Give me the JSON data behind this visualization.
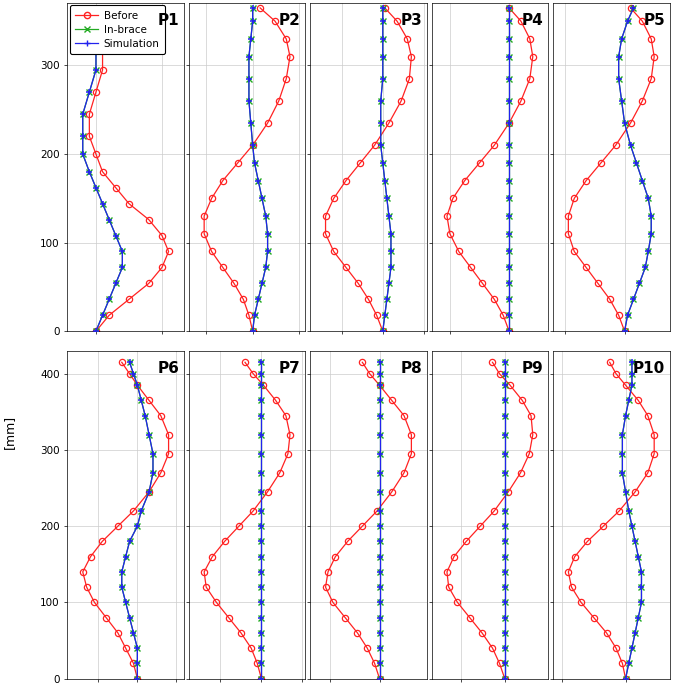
{
  "patients_row1": [
    "P1",
    "P2",
    "P3",
    "P4",
    "P5"
  ],
  "patients_row2": [
    "P6",
    "P7",
    "P8",
    "P9",
    "P10"
  ],
  "legend_labels": [
    "Before",
    "In-brace",
    "Simulation"
  ],
  "before_color": "#FF2222",
  "inbrace_color": "#22AA22",
  "sim_color": "#2222EE",
  "row1_ylim": [
    0,
    370
  ],
  "row2_ylim": [
    0,
    430
  ],
  "row1_yticks": [
    0,
    100,
    200,
    300
  ],
  "row2_yticks": [
    0,
    100,
    200,
    300,
    400
  ],
  "P1": {
    "by": [
      0,
      18,
      36,
      54,
      72,
      90,
      108,
      126,
      144,
      162,
      180,
      200,
      220,
      245,
      270,
      295,
      320,
      345
    ],
    "bx": [
      0,
      2,
      5,
      8,
      10,
      11,
      10,
      8,
      5,
      3,
      1,
      0,
      -1,
      -1,
      0,
      1,
      1,
      0
    ],
    "iy": [
      0,
      18,
      36,
      54,
      72,
      90,
      108,
      126,
      144,
      162,
      180,
      200,
      220,
      245,
      270,
      295,
      320,
      345
    ],
    "ix": [
      0,
      1,
      2,
      3,
      4,
      4,
      3,
      2,
      1,
      0,
      -1,
      -2,
      -2,
      -2,
      -1,
      0,
      0,
      0
    ],
    "sy": [
      0,
      18,
      36,
      54,
      72,
      90,
      108,
      126,
      144,
      162,
      180,
      200,
      220,
      245,
      270,
      295,
      320,
      345
    ],
    "sx": [
      0,
      1,
      2,
      3,
      4,
      4,
      3,
      2,
      1,
      0,
      -1,
      -2,
      -2,
      -2,
      -1,
      0,
      0,
      0
    ]
  },
  "P2": {
    "by": [
      0,
      18,
      36,
      54,
      72,
      90,
      110,
      130,
      150,
      170,
      190,
      210,
      235,
      260,
      285,
      310,
      330,
      350,
      365
    ],
    "bx": [
      0,
      -2,
      -5,
      -10,
      -16,
      -22,
      -26,
      -26,
      -22,
      -16,
      -8,
      0,
      8,
      14,
      18,
      20,
      18,
      12,
      4
    ],
    "iy": [
      0,
      18,
      36,
      54,
      72,
      90,
      110,
      130,
      150,
      170,
      190,
      210,
      235,
      260,
      285,
      310,
      330,
      350,
      365
    ],
    "ix": [
      0,
      1,
      3,
      5,
      7,
      8,
      8,
      7,
      5,
      3,
      1,
      0,
      -1,
      -2,
      -2,
      -2,
      -1,
      0,
      0
    ],
    "sy": [
      0,
      18,
      36,
      54,
      72,
      90,
      110,
      130,
      150,
      170,
      190,
      210,
      235,
      260,
      285,
      310,
      330,
      350,
      365
    ],
    "sx": [
      0,
      1,
      3,
      5,
      7,
      8,
      8,
      7,
      5,
      3,
      1,
      0,
      -1,
      -2,
      -2,
      -2,
      -1,
      0,
      0
    ]
  },
  "P3": {
    "by": [
      0,
      18,
      36,
      54,
      72,
      90,
      110,
      130,
      150,
      170,
      190,
      210,
      235,
      260,
      285,
      310,
      330,
      350,
      365
    ],
    "bx": [
      0,
      -3,
      -7,
      -12,
      -18,
      -24,
      -28,
      -28,
      -24,
      -18,
      -11,
      -4,
      3,
      9,
      13,
      14,
      12,
      7,
      1
    ],
    "iy": [
      0,
      18,
      36,
      54,
      72,
      90,
      110,
      130,
      150,
      170,
      190,
      210,
      235,
      260,
      285,
      310,
      330,
      350,
      365
    ],
    "ix": [
      0,
      1,
      2,
      3,
      4,
      4,
      4,
      3,
      2,
      1,
      0,
      -1,
      -1,
      -1,
      0,
      0,
      0,
      0,
      0
    ],
    "sy": [
      0,
      18,
      36,
      54,
      72,
      90,
      110,
      130,
      150,
      170,
      190,
      210,
      235,
      260,
      285,
      310,
      330,
      350,
      365
    ],
    "sx": [
      0,
      1,
      2,
      3,
      4,
      4,
      4,
      3,
      2,
      1,
      0,
      -1,
      -1,
      -1,
      0,
      0,
      0,
      0,
      0
    ]
  },
  "P4": {
    "by": [
      0,
      18,
      36,
      54,
      72,
      90,
      110,
      130,
      150,
      170,
      190,
      210,
      235,
      260,
      285,
      310,
      330,
      350,
      365
    ],
    "bx": [
      0,
      -2,
      -5,
      -9,
      -13,
      -17,
      -20,
      -21,
      -19,
      -15,
      -10,
      -5,
      0,
      4,
      7,
      8,
      7,
      4,
      0
    ],
    "iy": [
      0,
      18,
      36,
      54,
      72,
      90,
      110,
      130,
      150,
      170,
      190,
      210,
      235,
      260,
      285,
      310,
      330,
      350,
      365
    ],
    "ix": [
      0,
      0,
      0,
      0,
      0,
      0,
      0,
      0,
      0,
      0,
      0,
      0,
      0,
      0,
      0,
      0,
      0,
      0,
      0
    ],
    "sy": [
      0,
      18,
      36,
      54,
      72,
      90,
      110,
      130,
      150,
      170,
      190,
      210,
      235,
      260,
      285,
      310,
      330,
      350,
      365
    ],
    "sx": [
      0,
      0,
      0,
      0,
      0,
      0,
      0,
      0,
      0,
      0,
      0,
      0,
      0,
      0,
      0,
      0,
      0,
      0,
      0
    ]
  },
  "P5": {
    "by": [
      0,
      18,
      36,
      54,
      72,
      90,
      110,
      130,
      150,
      170,
      190,
      210,
      235,
      260,
      285,
      310,
      330,
      350,
      365
    ],
    "bx": [
      0,
      -2,
      -5,
      -9,
      -13,
      -17,
      -19,
      -19,
      -17,
      -13,
      -8,
      -3,
      2,
      6,
      9,
      10,
      9,
      6,
      2
    ],
    "iy": [
      0,
      18,
      36,
      54,
      72,
      90,
      110,
      130,
      150,
      170,
      190,
      210,
      235,
      260,
      285,
      310,
      330,
      350,
      365
    ],
    "ix": [
      0,
      1,
      3,
      5,
      7,
      8,
      9,
      9,
      8,
      6,
      4,
      2,
      0,
      -1,
      -2,
      -2,
      -1,
      1,
      3
    ],
    "sy": [
      0,
      18,
      36,
      54,
      72,
      90,
      110,
      130,
      150,
      170,
      190,
      210,
      235,
      260,
      285,
      310,
      330,
      350,
      365
    ],
    "sx": [
      0,
      1,
      3,
      5,
      7,
      8,
      9,
      9,
      8,
      6,
      4,
      2,
      0,
      -1,
      -2,
      -2,
      -1,
      1,
      3
    ]
  },
  "P6": {
    "by": [
      0,
      20,
      40,
      60,
      80,
      100,
      120,
      140,
      160,
      180,
      200,
      220,
      245,
      270,
      295,
      320,
      345,
      365,
      385,
      400,
      415
    ],
    "bx": [
      0,
      -1,
      -3,
      -5,
      -8,
      -11,
      -13,
      -14,
      -12,
      -9,
      -5,
      -1,
      3,
      6,
      8,
      8,
      6,
      3,
      0,
      -2,
      -4
    ],
    "iy": [
      0,
      20,
      40,
      60,
      80,
      100,
      120,
      140,
      160,
      180,
      200,
      220,
      245,
      270,
      295,
      320,
      345,
      365,
      385,
      400,
      415
    ],
    "ix": [
      0,
      0,
      0,
      -1,
      -2,
      -3,
      -4,
      -4,
      -3,
      -2,
      0,
      1,
      3,
      4,
      4,
      3,
      2,
      1,
      0,
      -1,
      -2
    ],
    "sy": [
      0,
      20,
      40,
      60,
      80,
      100,
      120,
      140,
      160,
      180,
      200,
      220,
      245,
      270,
      295,
      320,
      345,
      365,
      385,
      400,
      415
    ],
    "sx": [
      0,
      0,
      0,
      -1,
      -2,
      -3,
      -4,
      -4,
      -3,
      -2,
      0,
      1,
      3,
      4,
      4,
      3,
      2,
      1,
      0,
      -1,
      -2
    ]
  },
  "P7": {
    "by": [
      0,
      20,
      40,
      60,
      80,
      100,
      120,
      140,
      160,
      180,
      200,
      220,
      245,
      270,
      295,
      320,
      345,
      365,
      385,
      400,
      415
    ],
    "bx": [
      0,
      -2,
      -5,
      -10,
      -16,
      -22,
      -27,
      -28,
      -24,
      -18,
      -11,
      -4,
      3,
      9,
      13,
      14,
      12,
      7,
      1,
      -4,
      -8
    ],
    "iy": [
      0,
      20,
      40,
      60,
      80,
      100,
      120,
      140,
      160,
      180,
      200,
      220,
      245,
      270,
      295,
      320,
      345,
      365,
      385,
      400,
      415
    ],
    "ix": [
      0,
      0,
      0,
      0,
      0,
      0,
      0,
      0,
      0,
      0,
      0,
      0,
      0,
      0,
      0,
      0,
      0,
      0,
      0,
      0,
      0
    ],
    "sy": [
      0,
      20,
      40,
      60,
      80,
      100,
      120,
      140,
      160,
      180,
      200,
      220,
      245,
      270,
      295,
      320,
      345,
      365,
      385,
      400,
      415
    ],
    "sx": [
      0,
      0,
      0,
      0,
      0,
      0,
      0,
      0,
      0,
      0,
      0,
      0,
      0,
      0,
      0,
      0,
      0,
      0,
      0,
      0,
      0
    ]
  },
  "P8": {
    "by": [
      0,
      20,
      40,
      60,
      80,
      100,
      120,
      140,
      160,
      180,
      200,
      220,
      245,
      270,
      295,
      320,
      345,
      365,
      385,
      400,
      415
    ],
    "bx": [
      0,
      -2,
      -5,
      -9,
      -14,
      -19,
      -22,
      -21,
      -18,
      -13,
      -7,
      -1,
      5,
      10,
      13,
      13,
      10,
      5,
      0,
      -4,
      -7
    ],
    "iy": [
      0,
      20,
      40,
      60,
      80,
      100,
      120,
      140,
      160,
      180,
      200,
      220,
      245,
      270,
      295,
      320,
      345,
      365,
      385,
      400,
      415
    ],
    "ix": [
      0,
      0,
      0,
      0,
      0,
      0,
      0,
      0,
      0,
      0,
      0,
      0,
      0,
      0,
      0,
      0,
      0,
      0,
      0,
      0,
      0
    ],
    "sy": [
      0,
      20,
      40,
      60,
      80,
      100,
      120,
      140,
      160,
      180,
      200,
      220,
      245,
      270,
      295,
      320,
      345,
      365,
      385,
      400,
      415
    ],
    "sx": [
      0,
      0,
      0,
      0,
      0,
      0,
      0,
      0,
      0,
      0,
      0,
      0,
      0,
      0,
      0,
      0,
      0,
      0,
      0,
      0,
      0
    ]
  },
  "P9": {
    "by": [
      0,
      20,
      40,
      60,
      80,
      100,
      120,
      140,
      160,
      180,
      200,
      220,
      245,
      270,
      295,
      320,
      345,
      365,
      385,
      400,
      415
    ],
    "bx": [
      0,
      -3,
      -7,
      -13,
      -20,
      -27,
      -32,
      -33,
      -29,
      -22,
      -14,
      -6,
      2,
      9,
      14,
      16,
      15,
      10,
      3,
      -3,
      -7
    ],
    "iy": [
      0,
      20,
      40,
      60,
      80,
      100,
      120,
      140,
      160,
      180,
      200,
      220,
      245,
      270,
      295,
      320,
      345,
      365,
      385,
      400,
      415
    ],
    "ix": [
      0,
      0,
      0,
      0,
      0,
      0,
      0,
      0,
      0,
      0,
      0,
      0,
      0,
      0,
      0,
      0,
      0,
      0,
      0,
      0,
      0
    ],
    "sy": [
      0,
      20,
      40,
      60,
      80,
      100,
      120,
      140,
      160,
      180,
      200,
      220,
      245,
      270,
      295,
      320,
      345,
      365,
      385,
      400,
      415
    ],
    "sx": [
      0,
      0,
      0,
      0,
      0,
      0,
      0,
      0,
      0,
      0,
      0,
      0,
      0,
      0,
      0,
      0,
      0,
      0,
      0,
      0,
      0
    ]
  },
  "P10": {
    "by": [
      0,
      20,
      40,
      60,
      80,
      100,
      120,
      140,
      160,
      180,
      200,
      220,
      245,
      270,
      295,
      320,
      345,
      365,
      385,
      400,
      415
    ],
    "bx": [
      0,
      -1,
      -3,
      -6,
      -10,
      -14,
      -17,
      -18,
      -16,
      -12,
      -7,
      -2,
      3,
      7,
      9,
      9,
      7,
      4,
      0,
      -3,
      -5
    ],
    "iy": [
      0,
      20,
      40,
      60,
      80,
      100,
      120,
      140,
      160,
      180,
      200,
      220,
      245,
      270,
      295,
      320,
      345,
      365,
      385,
      400,
      415
    ],
    "ix": [
      0,
      1,
      2,
      3,
      4,
      5,
      5,
      5,
      4,
      3,
      2,
      1,
      0,
      -1,
      -1,
      -1,
      0,
      1,
      2,
      2,
      2
    ],
    "sy": [
      0,
      20,
      40,
      60,
      80,
      100,
      120,
      140,
      160,
      180,
      200,
      220,
      245,
      270,
      295,
      320,
      345,
      365,
      385,
      400,
      415
    ],
    "sx": [
      0,
      1,
      2,
      3,
      4,
      5,
      5,
      5,
      4,
      3,
      2,
      1,
      0,
      -1,
      -1,
      -1,
      0,
      1,
      2,
      2,
      2
    ]
  }
}
